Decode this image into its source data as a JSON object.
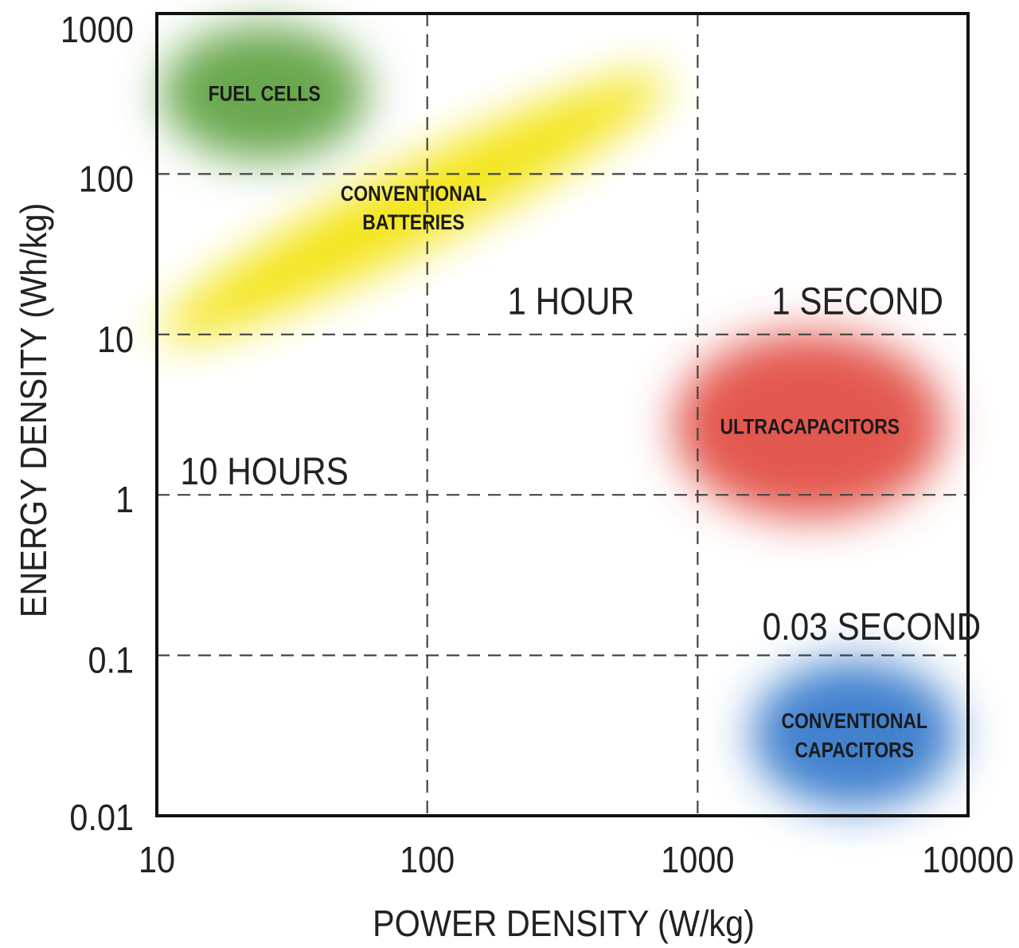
{
  "chart_data": {
    "type": "scatter",
    "title": "",
    "xlabel": "POWER DENSITY (W/kg)",
    "ylabel": "ENERGY DENSITY (Wh/kg)",
    "xscale": "log",
    "yscale": "log",
    "xlim": [
      10,
      10000
    ],
    "ylim": [
      0.01,
      1000
    ],
    "grid": true,
    "x_ticks": [
      "10",
      "100",
      "1000",
      "10000"
    ],
    "x_tick_values": [
      10,
      100,
      1000,
      10000
    ],
    "y_ticks": [
      "1000",
      "100",
      "10",
      "1",
      "0.1",
      "0.01"
    ],
    "y_tick_values": [
      1000,
      100,
      10,
      1,
      0.1,
      0.01
    ],
    "regions": [
      {
        "name": "FUEL CELLS",
        "lines": [
          "FUEL CELLS"
        ],
        "center": [
          25,
          320
        ],
        "spread_decades": [
          0.38,
          0.42
        ],
        "angle": 0,
        "color": "#5a9e3a"
      },
      {
        "name": "CONVENTIONAL BATTERIES",
        "lines": [
          "CONVENTIONAL",
          "BATTERIES"
        ],
        "center": [
          89,
          62
        ],
        "spread_decades": [
          1.05,
          0.25
        ],
        "angle": -27,
        "color": "#f2e200"
      },
      {
        "name": "ULTRACAPACITORS",
        "lines": [
          "ULTRACAPACITORS"
        ],
        "center": [
          2600,
          2.7
        ],
        "spread_decades": [
          0.5,
          0.58
        ],
        "angle": 0,
        "color": "#e0463a"
      },
      {
        "name": "CONVENTIONAL CAPACITORS",
        "lines": [
          "CONVENTIONAL",
          "CAPACITORS"
        ],
        "center": [
          3800,
          0.032
        ],
        "spread_decades": [
          0.38,
          0.46
        ],
        "angle": 0,
        "color": "#2f74c9"
      }
    ],
    "annotations": [
      {
        "text": "1 HOUR",
        "at": [
          340,
          16
        ]
      },
      {
        "text": "1 SECOND",
        "at": [
          3900,
          16
        ]
      },
      {
        "text": "10 HOURS",
        "at": [
          25,
          1.4
        ]
      },
      {
        "text": "0.03 SECOND",
        "at": [
          4400,
          0.15
        ]
      }
    ]
  }
}
